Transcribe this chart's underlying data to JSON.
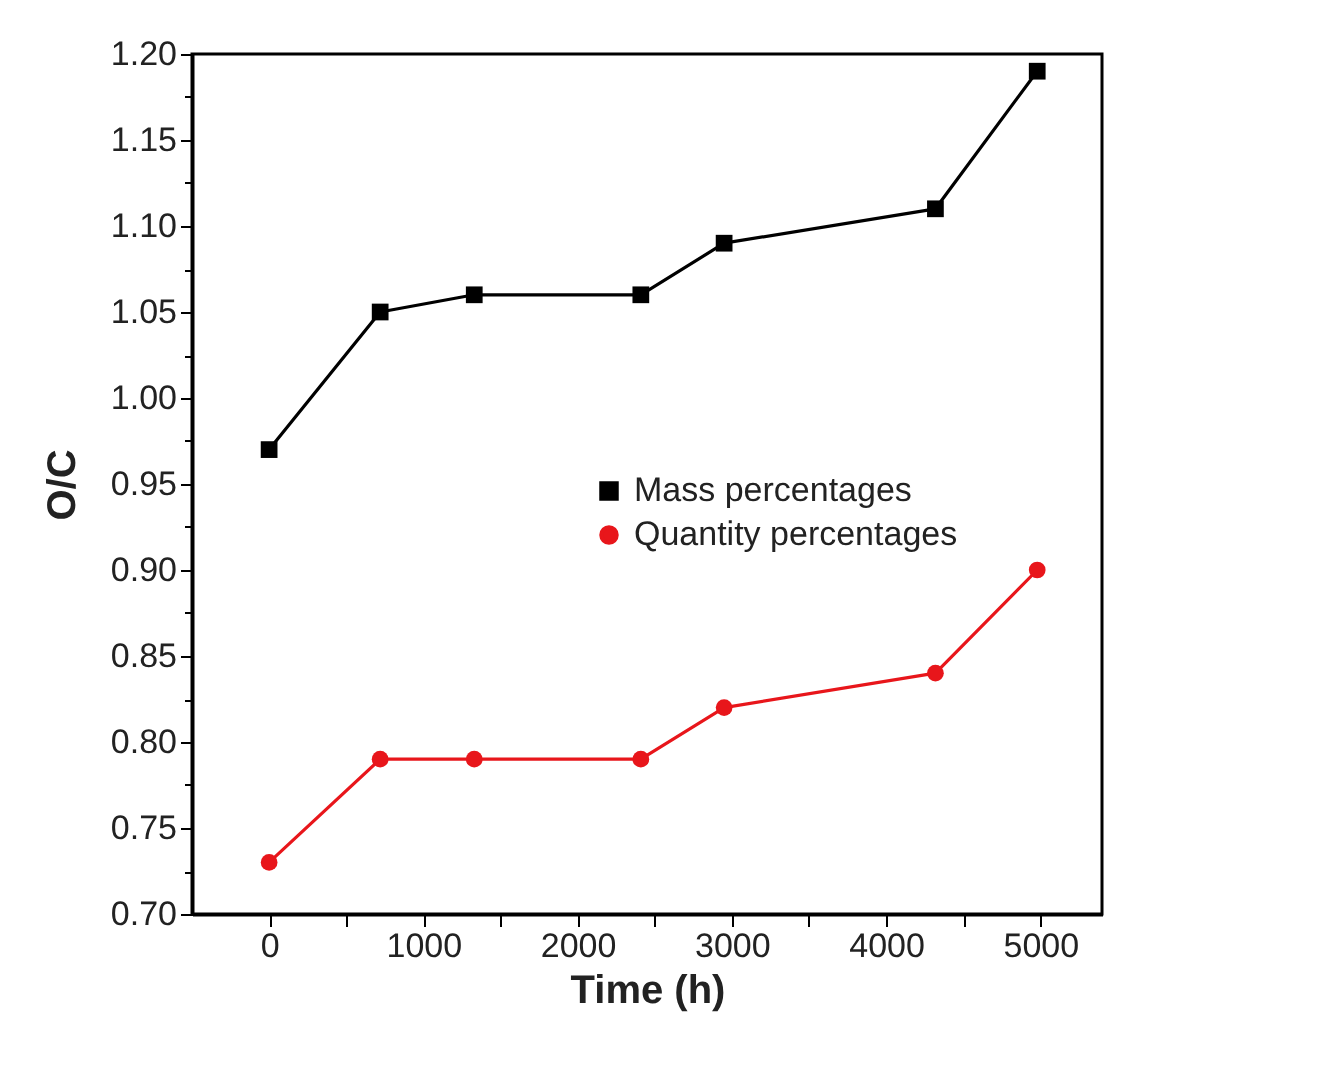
{
  "chart_data": {
    "type": "line",
    "xlabel": "Time (h)",
    "ylabel": "O/C",
    "xlim": [
      -500,
      5400
    ],
    "xticks": [
      0,
      {
        "value": 500,
        "label": null
      },
      1000,
      {
        "value": 1500,
        "label": null
      },
      2000,
      {
        "value": 2500,
        "label": null
      },
      3000,
      {
        "value": 3500,
        "label": null
      },
      4000,
      {
        "value": 4500,
        "label": null
      },
      5000
    ],
    "ylim": [
      0.7,
      1.2
    ],
    "yticks": [
      {
        "value": 0.7,
        "label": "0.70"
      },
      {
        "value": 0.725,
        "label": null
      },
      0.75,
      {
        "value": 0.775,
        "label": null
      },
      {
        "value": 0.8,
        "label": "0.80"
      },
      {
        "value": 0.825,
        "label": null
      },
      0.85,
      {
        "value": 0.875,
        "label": null
      },
      {
        "value": 0.9,
        "label": "0.90"
      },
      {
        "value": 0.925,
        "label": null
      },
      0.95,
      {
        "value": 0.975,
        "label": null
      },
      {
        "value": 1.0,
        "label": "1.00"
      },
      {
        "value": 1.025,
        "label": null
      },
      1.05,
      {
        "value": 1.075,
        "label": null
      },
      {
        "value": 1.1,
        "label": "1.10"
      },
      {
        "value": 1.125,
        "label": null
      },
      1.15,
      {
        "value": 1.175,
        "label": null
      },
      {
        "value": 1.2,
        "label": "1.20"
      }
    ],
    "x": [
      0,
      720,
      1330,
      2410,
      2950,
      4320,
      4980
    ],
    "series": [
      {
        "name": "Mass  percentages",
        "color": "#000000",
        "marker": "square",
        "values": [
          0.97,
          1.05,
          1.06,
          1.06,
          1.09,
          1.11,
          1.19
        ]
      },
      {
        "name": "Quantity percentages",
        "color": "#e8161b",
        "marker": "circle",
        "values": [
          0.73,
          0.79,
          0.79,
          0.79,
          0.82,
          0.84,
          0.9
        ]
      }
    ],
    "legend": "center",
    "grid": false,
    "line_style": "solid"
  }
}
